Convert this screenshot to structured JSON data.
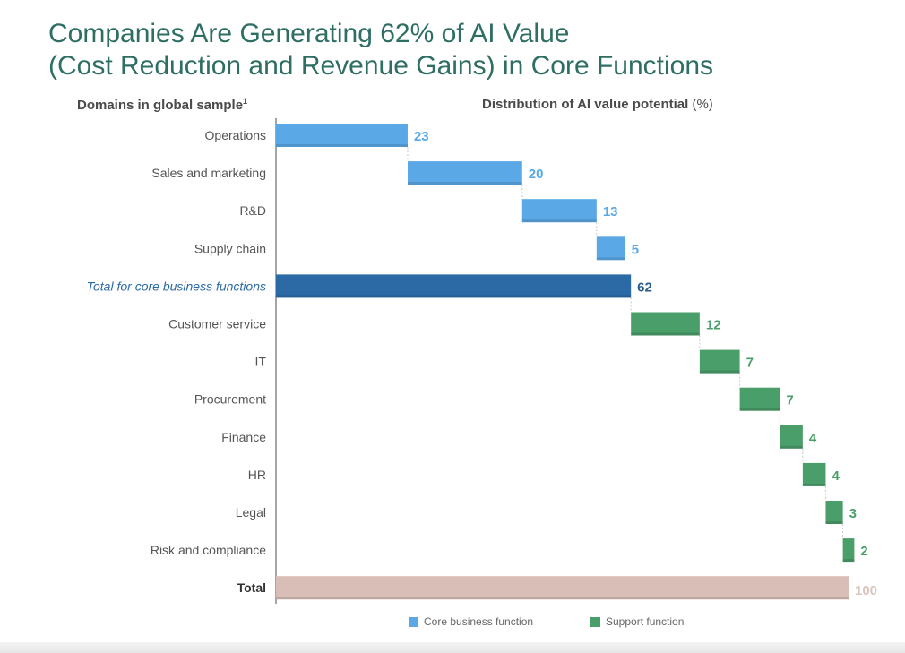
{
  "title": {
    "line1": "Companies Are Generating 62% of AI Value",
    "line2": "(Cost Reduction and Revenue Gains) in Core Functions"
  },
  "headers": {
    "left": "Domains in global sample",
    "left_sup": "1",
    "right": "Distribution of AI value potential",
    "right_unit": "(%)"
  },
  "legend": {
    "core": "Core business function",
    "support": "Support function"
  },
  "colors": {
    "core": "#5aa9e6",
    "core_total": "#2c6aa6",
    "support": "#4a9e6a",
    "total": "#d8beb6",
    "total_label": "#d8c5bd"
  },
  "chart_data": {
    "type": "bar",
    "subtype": "waterfall",
    "title": "Distribution of AI value potential (%)",
    "xlim": [
      0,
      100
    ],
    "rows": [
      {
        "label": "Operations",
        "value": 23,
        "start": 0,
        "kind": "core"
      },
      {
        "label": "Sales and marketing",
        "value": 20,
        "start": 23,
        "kind": "core"
      },
      {
        "label": "R&D",
        "value": 13,
        "start": 43,
        "kind": "core"
      },
      {
        "label": "Supply chain",
        "value": 5,
        "start": 56,
        "kind": "core"
      },
      {
        "label": "Total for core business functions",
        "value": 62,
        "start": 0,
        "kind": "core_total"
      },
      {
        "label": "Customer service",
        "value": 12,
        "start": 62,
        "kind": "support"
      },
      {
        "label": "IT",
        "value": 7,
        "start": 74,
        "kind": "support"
      },
      {
        "label": "Procurement",
        "value": 7,
        "start": 81,
        "kind": "support"
      },
      {
        "label": "Finance",
        "value": 4,
        "start": 88,
        "kind": "support"
      },
      {
        "label": "HR",
        "value": 4,
        "start": 92,
        "kind": "support"
      },
      {
        "label": "Legal",
        "value": 3,
        "start": 96,
        "kind": "support"
      },
      {
        "label": "Risk and compliance",
        "value": 2,
        "start": 99,
        "kind": "support"
      },
      {
        "label": "Total",
        "value": 100,
        "start": 0,
        "kind": "total"
      }
    ]
  }
}
